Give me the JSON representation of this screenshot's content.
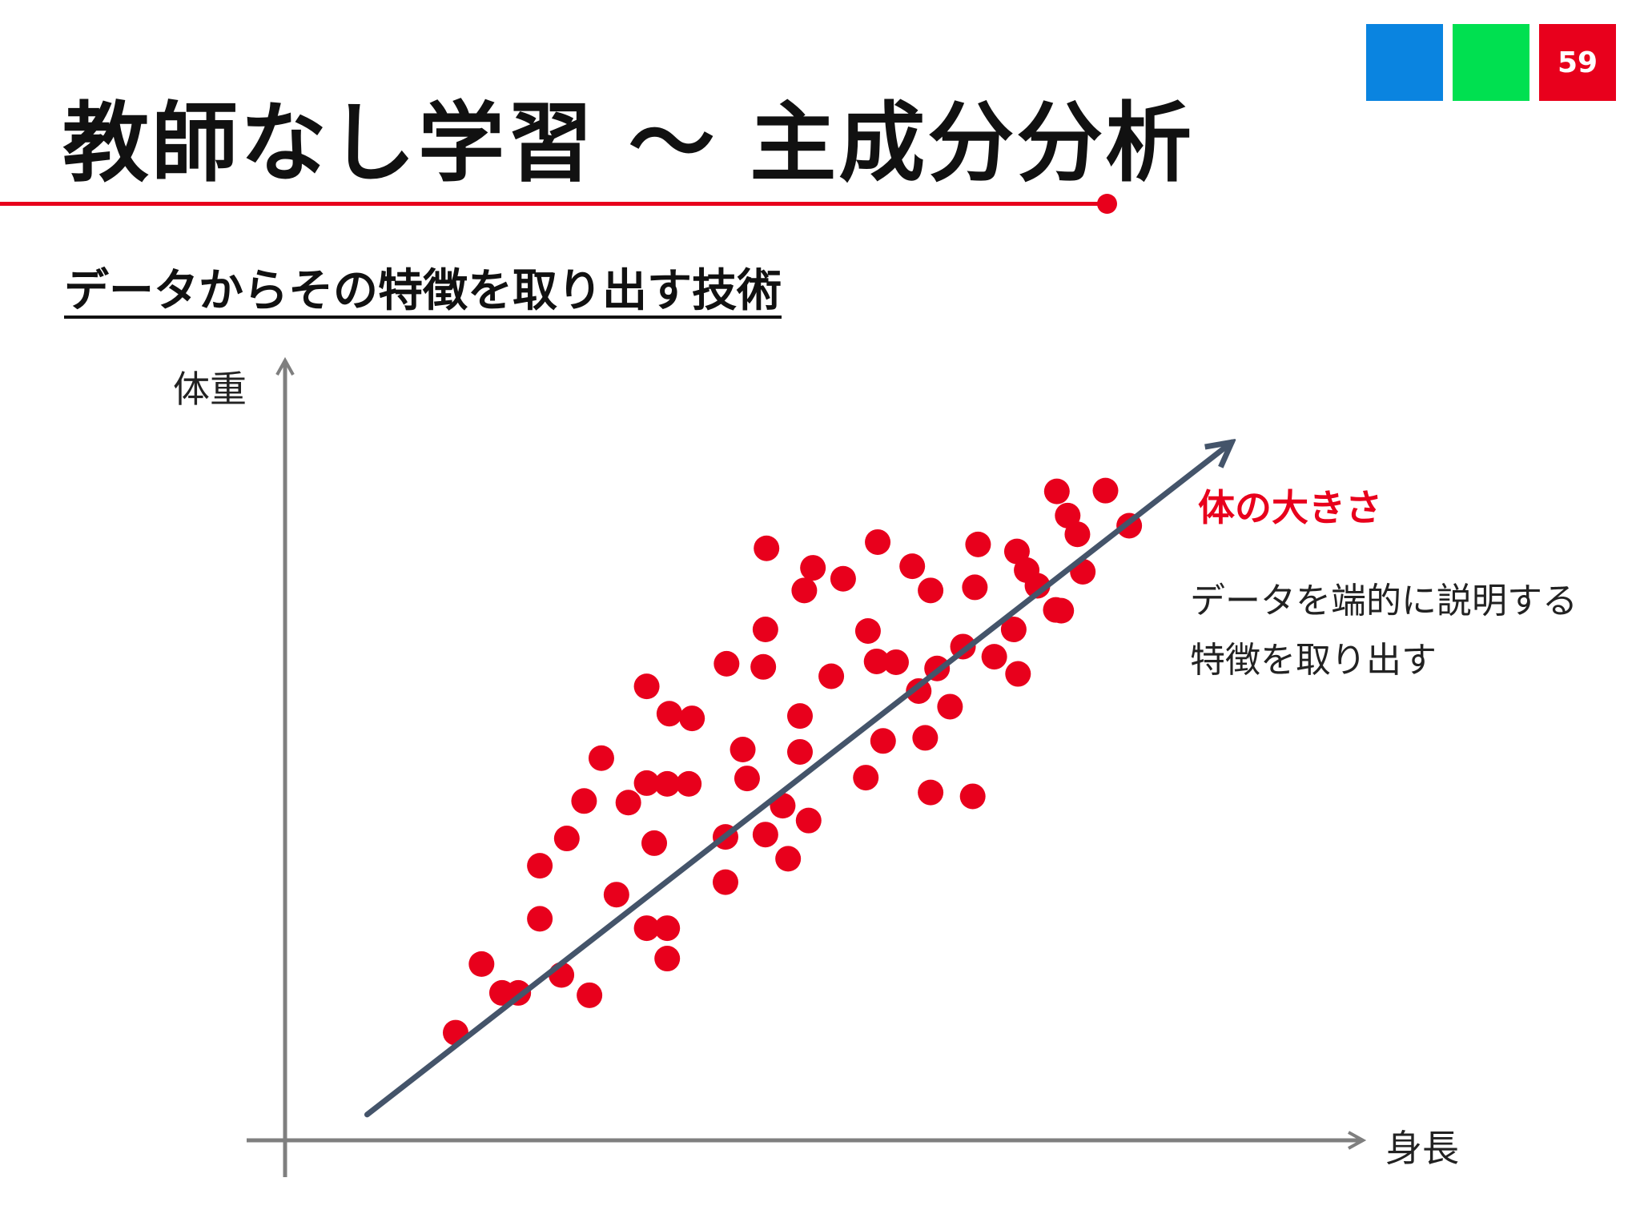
{
  "colors": {
    "blue": "#0a84e0",
    "green": "#00e050",
    "red": "#e8001c",
    "axis": "#7f7f7f",
    "arrow": "#44546a",
    "point": "#e8001c"
  },
  "page_number": "59",
  "title": "教師なし学習 ～ 主成分分析",
  "subtitle": "データからその特徴を取り出す技術",
  "annotation": {
    "label": "体の大きさ",
    "desc_line1": "データを端的に説明する",
    "desc_line2": "特徴を取り出す"
  },
  "chart_data": {
    "type": "scatter",
    "xlabel": "身長",
    "ylabel": "体重",
    "xlim": [
      0,
      100
    ],
    "ylim": [
      0,
      100
    ],
    "grid": false,
    "points": [
      [
        15.8,
        13.8
      ],
      [
        18.2,
        22.6
      ],
      [
        20.1,
        18.9
      ],
      [
        21.6,
        18.9
      ],
      [
        23.6,
        28.4
      ],
      [
        23.6,
        35.2
      ],
      [
        25.6,
        21.2
      ],
      [
        26.1,
        38.7
      ],
      [
        27.7,
        43.5
      ],
      [
        28.2,
        18.6
      ],
      [
        29.3,
        49.0
      ],
      [
        30.7,
        31.5
      ],
      [
        31.8,
        43.3
      ],
      [
        33.5,
        45.8
      ],
      [
        33.5,
        27.2
      ],
      [
        33.5,
        58.2
      ],
      [
        34.2,
        38.1
      ],
      [
        35.4,
        45.7
      ],
      [
        35.4,
        27.2
      ],
      [
        35.4,
        23.3
      ],
      [
        35.6,
        54.7
      ],
      [
        37.4,
        45.7
      ],
      [
        37.7,
        54.1
      ],
      [
        40.8,
        38.9
      ],
      [
        40.8,
        33.1
      ],
      [
        40.9,
        61.1
      ],
      [
        42.4,
        50.1
      ],
      [
        42.8,
        46.4
      ],
      [
        44.3,
        60.7
      ],
      [
        44.5,
        39.2
      ],
      [
        44.5,
        65.5
      ],
      [
        44.6,
        75.9
      ],
      [
        46.1,
        42.9
      ],
      [
        46.6,
        36.1
      ],
      [
        47.7,
        54.4
      ],
      [
        47.7,
        49.8
      ],
      [
        48.1,
        70.5
      ],
      [
        48.5,
        41.0
      ],
      [
        48.9,
        73.4
      ],
      [
        50.6,
        59.5
      ],
      [
        51.7,
        72.0
      ],
      [
        53.8,
        46.5
      ],
      [
        54.0,
        65.3
      ],
      [
        54.8,
        61.4
      ],
      [
        54.9,
        76.7
      ],
      [
        55.4,
        51.2
      ],
      [
        56.6,
        61.3
      ],
      [
        58.1,
        73.6
      ],
      [
        58.7,
        57.6
      ],
      [
        59.3,
        51.6
      ],
      [
        59.8,
        70.5
      ],
      [
        59.8,
        44.6
      ],
      [
        60.4,
        60.5
      ],
      [
        61.6,
        55.6
      ],
      [
        62.8,
        63.3
      ],
      [
        63.7,
        44.1
      ],
      [
        63.9,
        70.9
      ],
      [
        64.2,
        76.4
      ],
      [
        65.7,
        62.0
      ],
      [
        67.5,
        65.5
      ],
      [
        67.9,
        59.8
      ],
      [
        67.8,
        75.5
      ],
      [
        68.7,
        73.1
      ],
      [
        69.7,
        71.1
      ],
      [
        71.4,
        68.0
      ],
      [
        71.9,
        67.9
      ],
      [
        71.5,
        83.2
      ],
      [
        72.5,
        80.1
      ],
      [
        73.4,
        77.7
      ],
      [
        73.9,
        72.9
      ],
      [
        76.0,
        83.3
      ],
      [
        78.2,
        78.8
      ]
    ],
    "principal_component": {
      "start": [
        7.6,
        3.3
      ],
      "end": [
        87.7,
        89.5
      ]
    }
  }
}
